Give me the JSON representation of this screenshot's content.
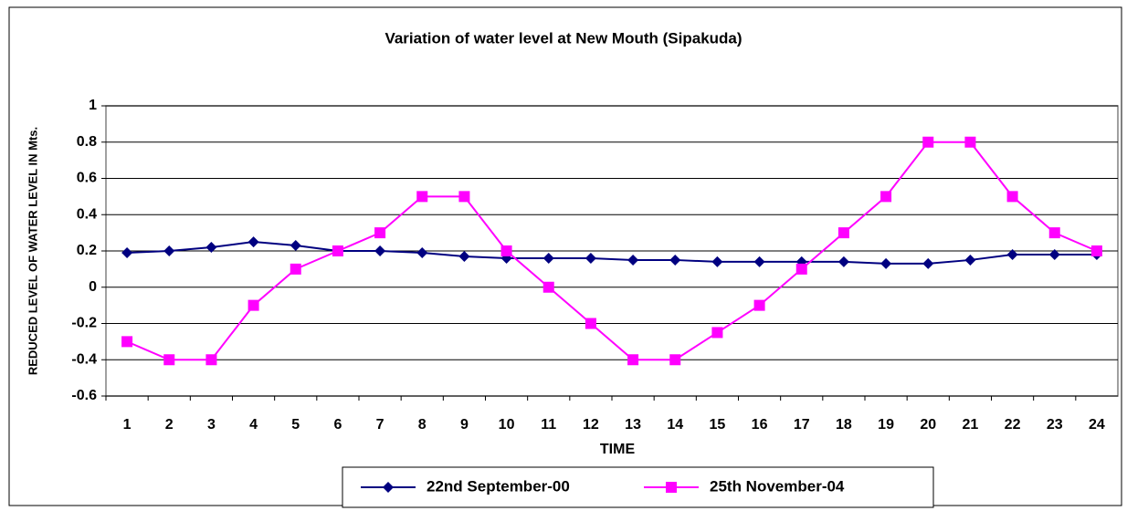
{
  "chart_data": {
    "type": "line",
    "title": "Variation of water level at New Mouth (Sipakuda)",
    "x_label": "TIME",
    "y_label": "REDUCED LEVEL OF WATER LEVEL IN Mts.",
    "categories": [
      "1",
      "2",
      "3",
      "4",
      "5",
      "6",
      "7",
      "8",
      "9",
      "10",
      "11",
      "12",
      "13",
      "14",
      "15",
      "16",
      "17",
      "18",
      "19",
      "20",
      "21",
      "22",
      "23",
      "24"
    ],
    "series": [
      {
        "name": "22nd September-00",
        "color": "#000080",
        "marker": "diamond",
        "values": [
          0.19,
          0.2,
          0.22,
          0.25,
          0.23,
          0.2,
          0.2,
          0.19,
          0.17,
          0.16,
          0.16,
          0.16,
          0.15,
          0.15,
          0.14,
          0.14,
          0.14,
          0.14,
          0.13,
          0.13,
          0.15,
          0.18,
          0.18,
          0.18
        ]
      },
      {
        "name": "25th November-04",
        "color": "#ff00ff",
        "marker": "square",
        "values": [
          -0.3,
          -0.4,
          -0.4,
          -0.1,
          0.1,
          0.2,
          0.3,
          0.5,
          0.5,
          0.2,
          0,
          -0.2,
          -0.4,
          -0.4,
          -0.25,
          -0.1,
          0.1,
          0.3,
          0.5,
          0.8,
          0.8,
          0.5,
          0.3,
          0.2
        ]
      }
    ],
    "ylim": [
      -0.6,
      1
    ],
    "yticks": [
      -0.6,
      -0.4,
      -0.2,
      0,
      0.2,
      0.4,
      0.6,
      0.8,
      1
    ],
    "grid": true,
    "legend": "bottom"
  }
}
